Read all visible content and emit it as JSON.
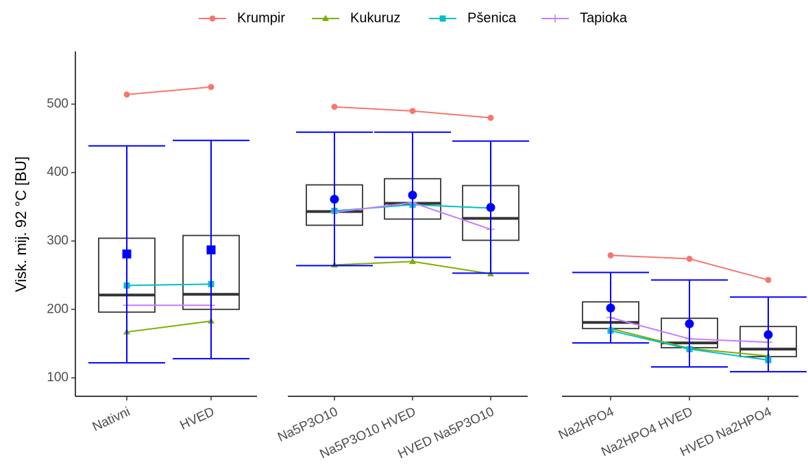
{
  "chart_data": {
    "type": "box",
    "ylabel": "Visk. mij. 92 °C [BU]",
    "ylim": [
      73,
      577
    ],
    "yticks": [
      100,
      200,
      300,
      400,
      500
    ],
    "legend_position": "top",
    "panels": [
      {
        "categories": [
          "Nativni",
          "HVED"
        ],
        "mean_marker": "square",
        "q1": [
          196,
          200
        ],
        "median": [
          221,
          222
        ],
        "q3": [
          304,
          308
        ],
        "mean": [
          281,
          287
        ],
        "err_low": [
          122,
          128
        ],
        "err_high": [
          439,
          447
        ]
      },
      {
        "categories": [
          "Na5P3O10",
          "Na5P3O10 HVED",
          "HVED Na5P3O10"
        ],
        "mean_marker": "circle",
        "q1": [
          323,
          332,
          301
        ],
        "median": [
          343,
          355,
          333
        ],
        "q3": [
          382,
          391,
          381
        ],
        "mean": [
          361,
          367,
          349
        ],
        "err_low": [
          264,
          276,
          253
        ],
        "err_high": [
          459,
          459,
          446
        ]
      },
      {
        "categories": [
          "Na2HPO4",
          "Na2HPO4 HVED",
          "HVED Na2HPO4"
        ],
        "mean_marker": "circle",
        "q1": [
          172,
          144,
          131
        ],
        "median": [
          181,
          151,
          142
        ],
        "q3": [
          211,
          187,
          175
        ],
        "mean": [
          202,
          179,
          163
        ],
        "err_low": [
          151,
          116,
          109
        ],
        "err_high": [
          254,
          243,
          218
        ]
      }
    ],
    "box_color": "#333333",
    "error_color": "#0000ff",
    "series": [
      {
        "name": "Krumpir",
        "color": "#f8766d",
        "marker": "circle",
        "values": [
          514,
          525,
          496,
          490,
          480,
          279,
          274,
          243
        ]
      },
      {
        "name": "Kukuruz",
        "color": "#7cae00",
        "marker": "triangle",
        "values": [
          167,
          183,
          265,
          270,
          252,
          172,
          143,
          132
        ]
      },
      {
        "name": "Pšenica",
        "color": "#00bfc4",
        "marker": "square",
        "values": [
          235,
          237,
          344,
          353,
          348,
          169,
          142,
          126
        ]
      },
      {
        "name": "Tapioka",
        "color": "#c77cff",
        "marker": "plus",
        "values": [
          206,
          206,
          342,
          356,
          317,
          188,
          157,
          152
        ]
      }
    ]
  }
}
